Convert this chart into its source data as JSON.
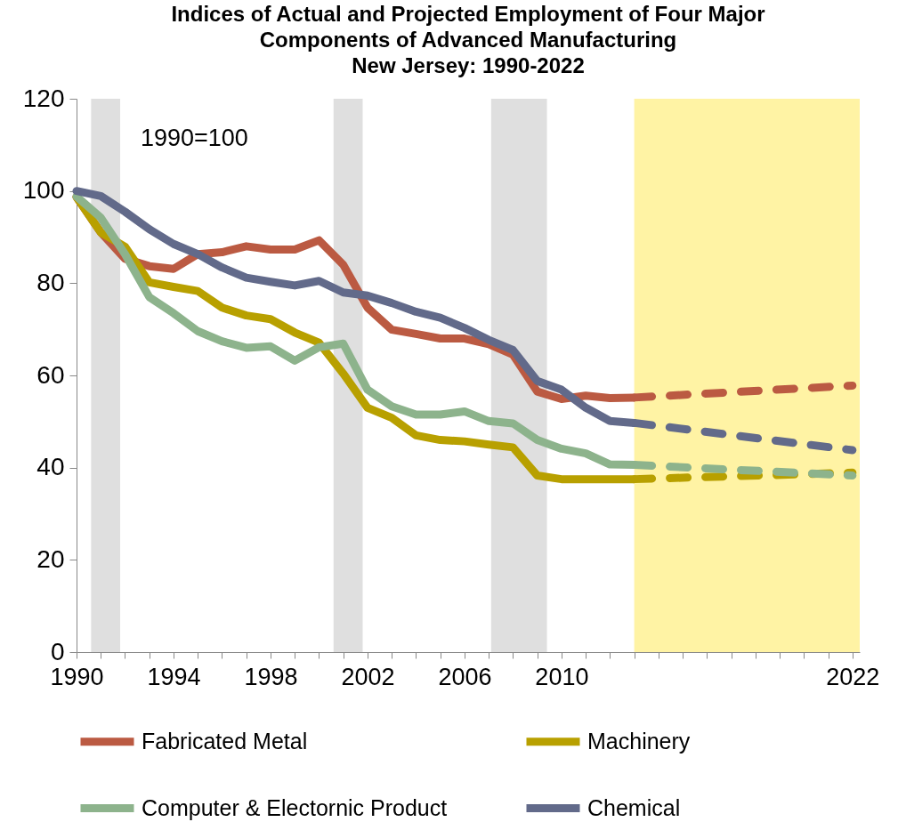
{
  "chart_data": {
    "type": "line",
    "title": "Indices of Actual and Projected Employment of Four Major\nComponents of Advanced Manufacturing\nNew Jersey:  1990-2022",
    "annotations": [
      "1990=100"
    ],
    "x": [
      1990,
      1991,
      1992,
      1993,
      1994,
      1995,
      1996,
      1997,
      1998,
      1999,
      2000,
      2001,
      2002,
      2003,
      2004,
      2005,
      2006,
      2007,
      2008,
      2009,
      2010,
      2011,
      2012,
      2013,
      2022
    ],
    "series": [
      {
        "name": "Fabricated Metal",
        "color": "#bb5a42",
        "values": [
          98.7,
          91.0,
          85.3,
          83.7,
          83.1,
          86.3,
          86.7,
          88.0,
          87.3,
          87.3,
          89.3,
          84.0,
          74.7,
          69.9,
          69.0,
          68.0,
          68.0,
          66.8,
          64.5,
          56.5,
          54.9,
          55.6,
          55.1,
          55.2,
          null
        ]
      },
      {
        "name": "Machinery",
        "color": "#b8a000",
        "values": [
          98.7,
          91.0,
          87.9,
          80.2,
          79.2,
          78.3,
          74.7,
          73.0,
          72.2,
          69.3,
          67.1,
          60.4,
          53.0,
          50.8,
          47.0,
          46.0,
          45.7,
          45.0,
          44.4,
          38.3,
          37.5,
          37.5,
          37.5,
          37.5,
          null
        ]
      },
      {
        "name": "Computer & Electornic Product",
        "color": "#8db38c",
        "values": [
          98.8,
          94.2,
          86.3,
          77.0,
          73.5,
          69.6,
          67.4,
          66.0,
          66.3,
          63.2,
          66.1,
          66.9,
          56.9,
          53.3,
          51.5,
          51.5,
          52.2,
          50.1,
          49.6,
          46.0,
          44.1,
          43.1,
          40.7,
          40.6,
          null
        ]
      },
      {
        "name": "Chemical",
        "color": "#626a8a",
        "values": [
          100,
          98.9,
          95.5,
          91.7,
          88.5,
          86.3,
          83.4,
          81.2,
          80.3,
          79.5,
          80.5,
          78.0,
          77.3,
          75.7,
          73.8,
          72.5,
          70.3,
          67.7,
          65.5,
          58.8,
          56.9,
          53.0,
          50.1,
          49.7,
          null
        ]
      },
      {
        "color": "#bb5a42",
        "line_style": "dashed",
        "values": [
          null,
          null,
          null,
          null,
          null,
          null,
          null,
          null,
          null,
          null,
          null,
          null,
          null,
          null,
          null,
          null,
          null,
          null,
          null,
          null,
          null,
          null,
          null,
          55.2,
          57.8
        ]
      },
      {
        "color": "#b8a000",
        "line_style": "dashed",
        "values": [
          null,
          null,
          null,
          null,
          null,
          null,
          null,
          null,
          null,
          null,
          null,
          null,
          null,
          null,
          null,
          null,
          null,
          null,
          null,
          null,
          null,
          null,
          null,
          37.5,
          38.9
        ]
      },
      {
        "color": "#8db38c",
        "line_style": "dashed",
        "values": [
          null,
          null,
          null,
          null,
          null,
          null,
          null,
          null,
          null,
          null,
          null,
          null,
          null,
          null,
          null,
          null,
          null,
          null,
          null,
          null,
          null,
          null,
          null,
          40.6,
          38.3
        ]
      },
      {
        "color": "#626a8a",
        "line_style": "dashed",
        "values": [
          null,
          null,
          null,
          null,
          null,
          null,
          null,
          null,
          null,
          null,
          null,
          null,
          null,
          null,
          null,
          null,
          null,
          null,
          null,
          null,
          null,
          null,
          null,
          49.7,
          43.8
        ]
      }
    ],
    "bands": [
      {
        "axis": "x",
        "from": 1990.6,
        "to": 1991.8,
        "color": "#dcdcdc"
      },
      {
        "axis": "x",
        "from": 2000.6,
        "to": 2001.8,
        "color": "#dcdcdc"
      },
      {
        "axis": "x",
        "from": 2007.1,
        "to": 2009.4,
        "color": "#dcdcdc"
      },
      {
        "axis": "x",
        "from": 2013,
        "to": 2022.3,
        "color": "#fff29a"
      }
    ],
    "xlim": [
      1990,
      2022.3
    ],
    "xticks": [
      1990,
      {
        "value": 1991,
        "label": null
      },
      {
        "value": 1992,
        "label": null
      },
      {
        "value": 1993,
        "label": null
      },
      1994,
      {
        "value": 1995,
        "label": null
      },
      {
        "value": 1996,
        "label": null
      },
      {
        "value": 1997,
        "label": null
      },
      1998,
      {
        "value": 1999,
        "label": null
      },
      {
        "value": 2000,
        "label": null
      },
      {
        "value": 2001,
        "label": null
      },
      2002,
      {
        "value": 2003,
        "label": null
      },
      {
        "value": 2004,
        "label": null
      },
      {
        "value": 2005,
        "label": null
      },
      2006,
      {
        "value": 2007,
        "label": null
      },
      {
        "value": 2008,
        "label": null
      },
      {
        "value": 2009,
        "label": null
      },
      2010,
      {
        "value": 2011,
        "label": null
      },
      {
        "value": 2012,
        "label": null
      },
      {
        "value": 2013,
        "label": null
      },
      {
        "value": 2014,
        "label": null
      },
      {
        "value": 2015,
        "label": null
      },
      {
        "value": 2016,
        "label": null
      },
      {
        "value": 2017,
        "label": null
      },
      {
        "value": 2018,
        "label": null
      },
      {
        "value": 2019,
        "label": null
      },
      {
        "value": 2020,
        "label": null
      },
      {
        "value": 2021,
        "label": null
      },
      2022
    ],
    "ylim": [
      0,
      120
    ],
    "yticks": [
      0,
      20,
      40,
      60,
      80,
      100,
      120
    ],
    "legend": "bottom",
    "marker": "none"
  }
}
